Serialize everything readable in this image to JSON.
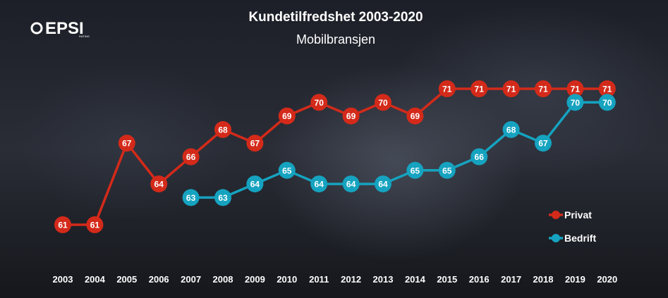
{
  "logo": {
    "text": "EPSI",
    "sub": "RATING"
  },
  "chart_data": {
    "type": "line",
    "title": "Kundetilfredshet 2003-2020",
    "subtitle": "Mobilbransjen",
    "categories": [
      "2003",
      "2004",
      "2005",
      "2006",
      "2007",
      "2008",
      "2009",
      "2010",
      "2011",
      "2012",
      "2013",
      "2014",
      "2015",
      "2016",
      "2017",
      "2018",
      "2019",
      "2020"
    ],
    "ylim": [
      58,
      73
    ],
    "series": [
      {
        "name": "Privat",
        "color": "#d42a1a",
        "values": [
          61,
          61,
          67,
          64,
          66,
          68,
          67,
          69,
          70,
          69,
          70,
          69,
          71,
          71,
          71,
          71,
          71,
          71
        ]
      },
      {
        "name": "Bedrift",
        "color": "#15a3c0",
        "values": [
          null,
          null,
          null,
          null,
          63,
          63,
          64,
          65,
          64,
          64,
          64,
          65,
          65,
          66,
          68,
          67,
          70,
          70
        ]
      }
    ],
    "legend_position": "right"
  }
}
